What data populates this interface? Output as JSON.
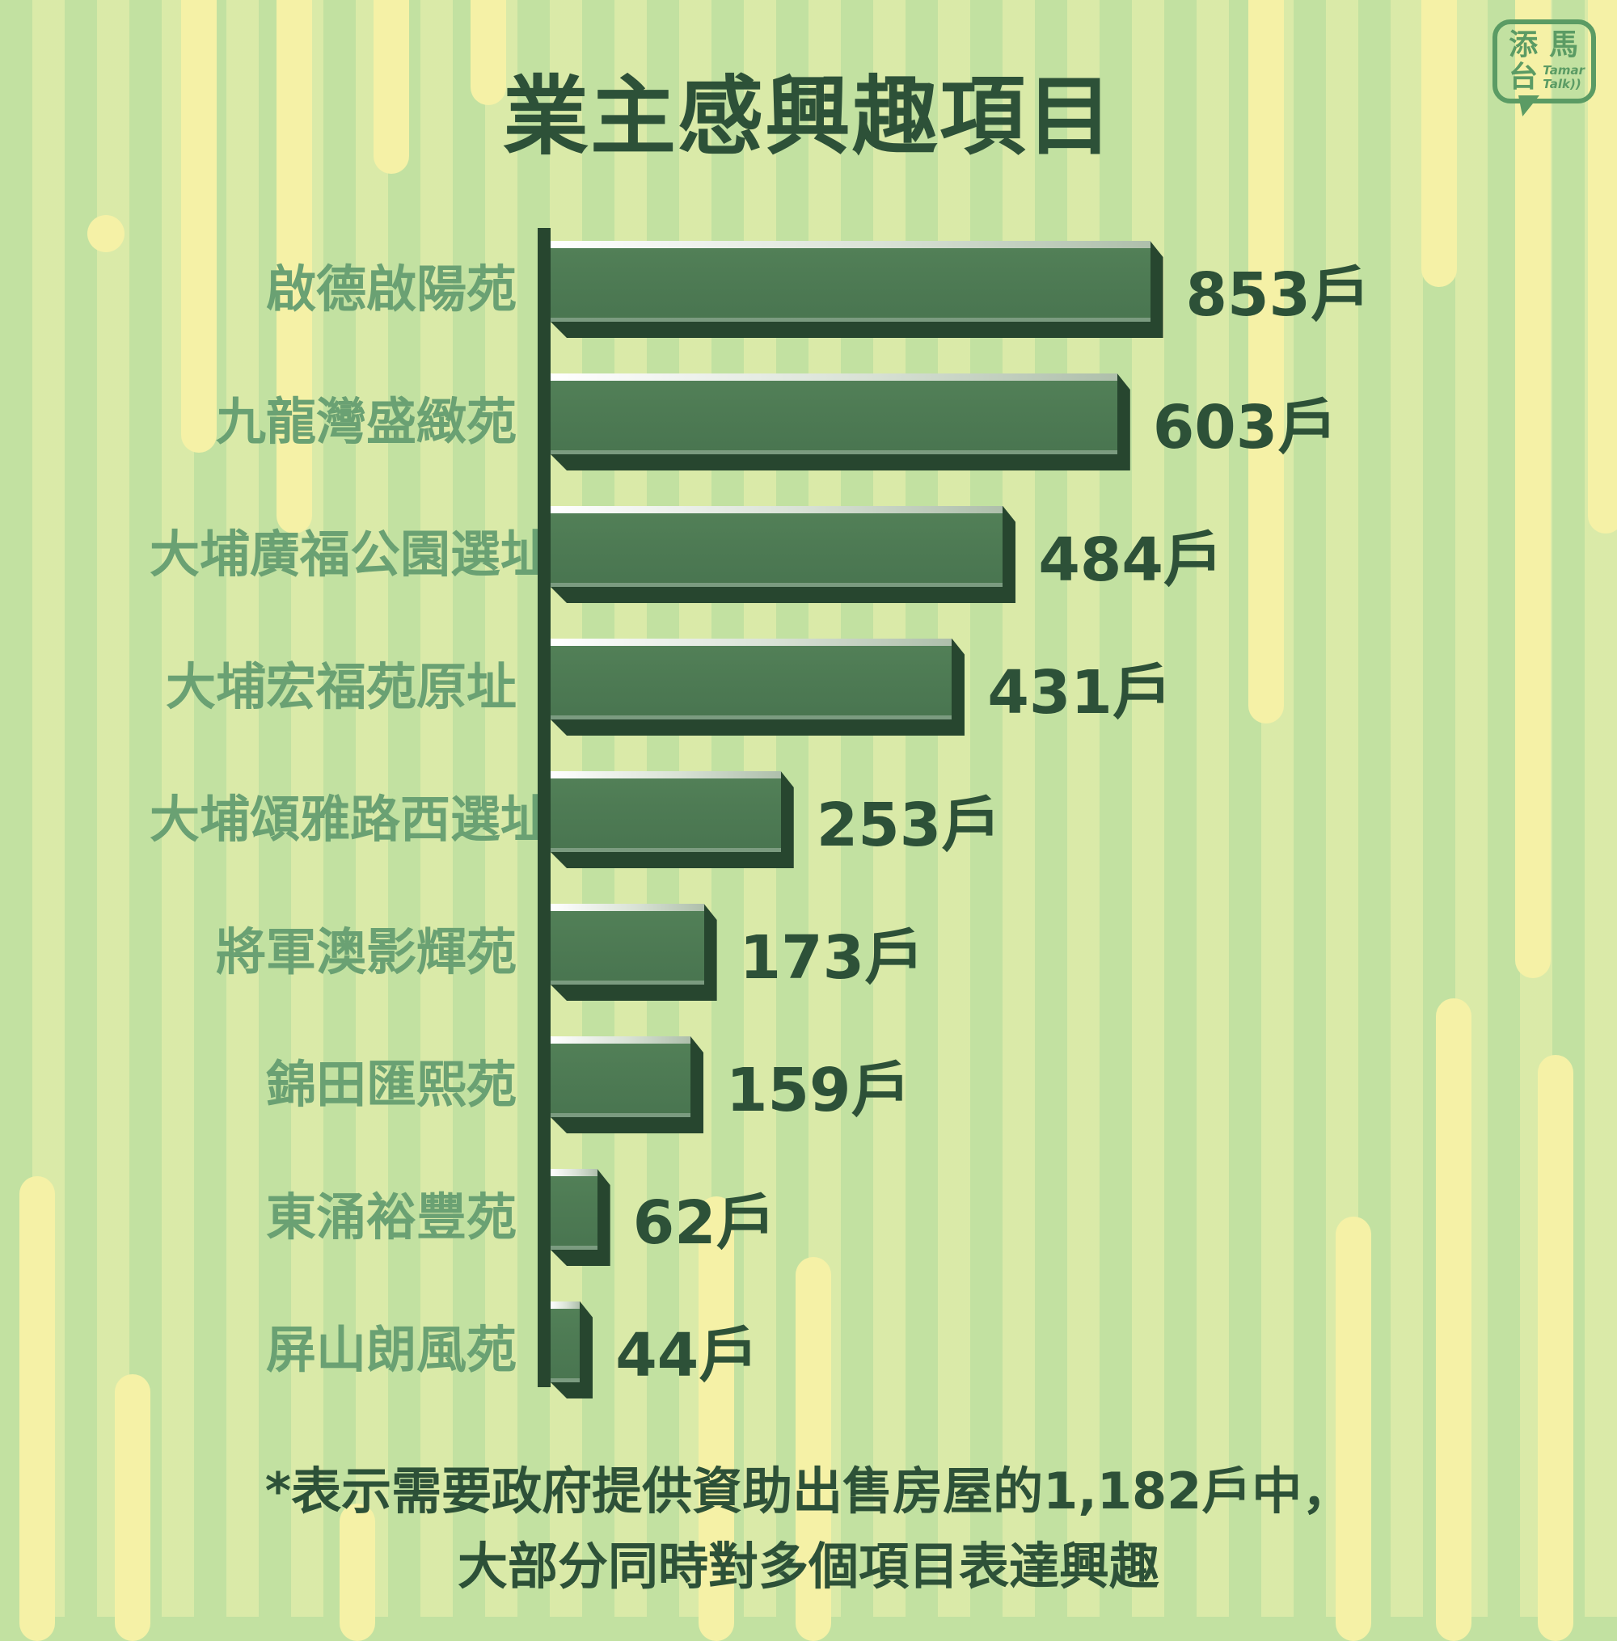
{
  "title": "業主感興趣項目",
  "logo": {
    "zh_1": "添",
    "zh_2": "馬",
    "zh_3": "台",
    "en_1": "Tamar",
    "en_2": "Talk))"
  },
  "chart_data": {
    "type": "bar",
    "orientation": "horizontal",
    "title": "業主感興趣項目",
    "categories": [
      "啟德啟陽苑",
      "九龍灣盛緻苑",
      "大埔廣福公園選址",
      "大埔宏福苑原址",
      "大埔頌雅路西選址",
      "將軍澳影輝苑",
      "錦田匯熙苑",
      "東涌裕豐苑",
      "屏山朗風苑"
    ],
    "values": [
      853,
      603,
      484,
      431,
      253,
      173,
      159,
      62,
      44
    ],
    "value_labels": [
      "853戶",
      "603戶",
      "484戶",
      "431戶",
      "253戶",
      "173戶",
      "159戶",
      "62戶",
      "44戶"
    ],
    "unit": "戶",
    "xlim": [
      0,
      853
    ],
    "grid": false,
    "legend": "none"
  },
  "footnote": {
    "line1": "*表示需要政府提供資助出售房屋的1,182戶中，",
    "line2": "大部分同時對多個項目表達興趣"
  },
  "colors": {
    "background": "#c2e1a1",
    "capsule": "#f5f1a6",
    "bar_face": "#4e7b54",
    "bar_edge": "#27462f",
    "title_text": "#2d5138",
    "category_text": "#6aa173",
    "value_text": "#2d5138",
    "logo_green": "#5b9b64"
  }
}
